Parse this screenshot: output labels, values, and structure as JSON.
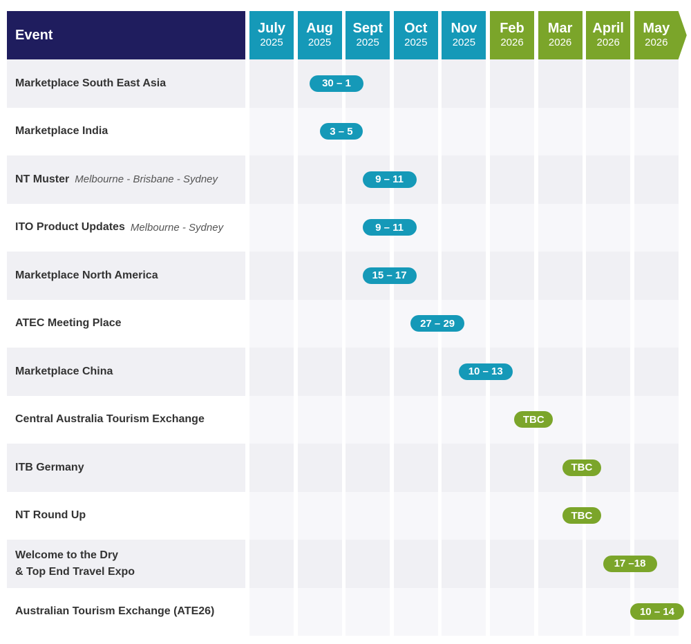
{
  "header": {
    "event_label": "Event"
  },
  "colors": {
    "navy": "#1f1d5e",
    "teal": "#1599b8",
    "green": "#7ba52a",
    "row_even": "#f0f0f4",
    "row_odd": "#ffffff"
  },
  "months": [
    {
      "month": "July",
      "year": "2025",
      "color": "teal"
    },
    {
      "month": "Aug",
      "year": "2025",
      "color": "teal"
    },
    {
      "month": "Sept",
      "year": "2025",
      "color": "teal"
    },
    {
      "month": "Oct",
      "year": "2025",
      "color": "teal"
    },
    {
      "month": "Nov",
      "year": "2025",
      "color": "teal"
    },
    {
      "month": "Feb",
      "year": "2026",
      "color": "green"
    },
    {
      "month": "Mar",
      "year": "2026",
      "color": "green"
    },
    {
      "month": "April",
      "year": "2026",
      "color": "green"
    },
    {
      "month": "May",
      "year": "2026",
      "color": "green"
    }
  ],
  "events": [
    {
      "name": "Marketplace South East Asia",
      "location": "",
      "dates": "30 – 1",
      "month_index": 0.9,
      "color": "teal"
    },
    {
      "name": "Marketplace India",
      "location": "",
      "dates": "3 – 5",
      "month_index": 1.45,
      "color": "teal"
    },
    {
      "name": "NT Muster",
      "location": "Melbourne - Brisbane - Sydney",
      "dates": "9 – 11",
      "month_index": 2.45,
      "color": "teal"
    },
    {
      "name": "ITO Product Updates",
      "location": "Melbourne - Sydney",
      "dates": "9 – 11",
      "month_index": 2.45,
      "color": "teal"
    },
    {
      "name": "Marketplace North America",
      "location": "",
      "dates": "15 – 17",
      "month_index": 2.45,
      "color": "teal"
    },
    {
      "name": "ATEC Meeting Place",
      "location": "",
      "dates": "27 – 29",
      "month_index": 3.45,
      "color": "teal"
    },
    {
      "name": "Marketplace China",
      "location": "",
      "dates": "10 – 13",
      "month_index": 4.45,
      "color": "teal"
    },
    {
      "name": "Central Australia Tourism Exchange",
      "location": "",
      "dates": "TBC",
      "month_index": 5.45,
      "color": "green"
    },
    {
      "name": "ITB Germany",
      "location": "",
      "dates": "TBC",
      "month_index": 6.45,
      "color": "green"
    },
    {
      "name": "NT Round Up",
      "location": "",
      "dates": "TBC",
      "month_index": 6.45,
      "color": "green"
    },
    {
      "name": "Welcome to the Dry\n& Top End Travel Expo",
      "location": "",
      "dates": "17 –18",
      "month_index": 7.45,
      "color": "green"
    },
    {
      "name": "Australian Tourism Exchange (ATE26)",
      "location": "",
      "dates": "10 – 14",
      "month_index": 8.45,
      "color": "green"
    }
  ]
}
